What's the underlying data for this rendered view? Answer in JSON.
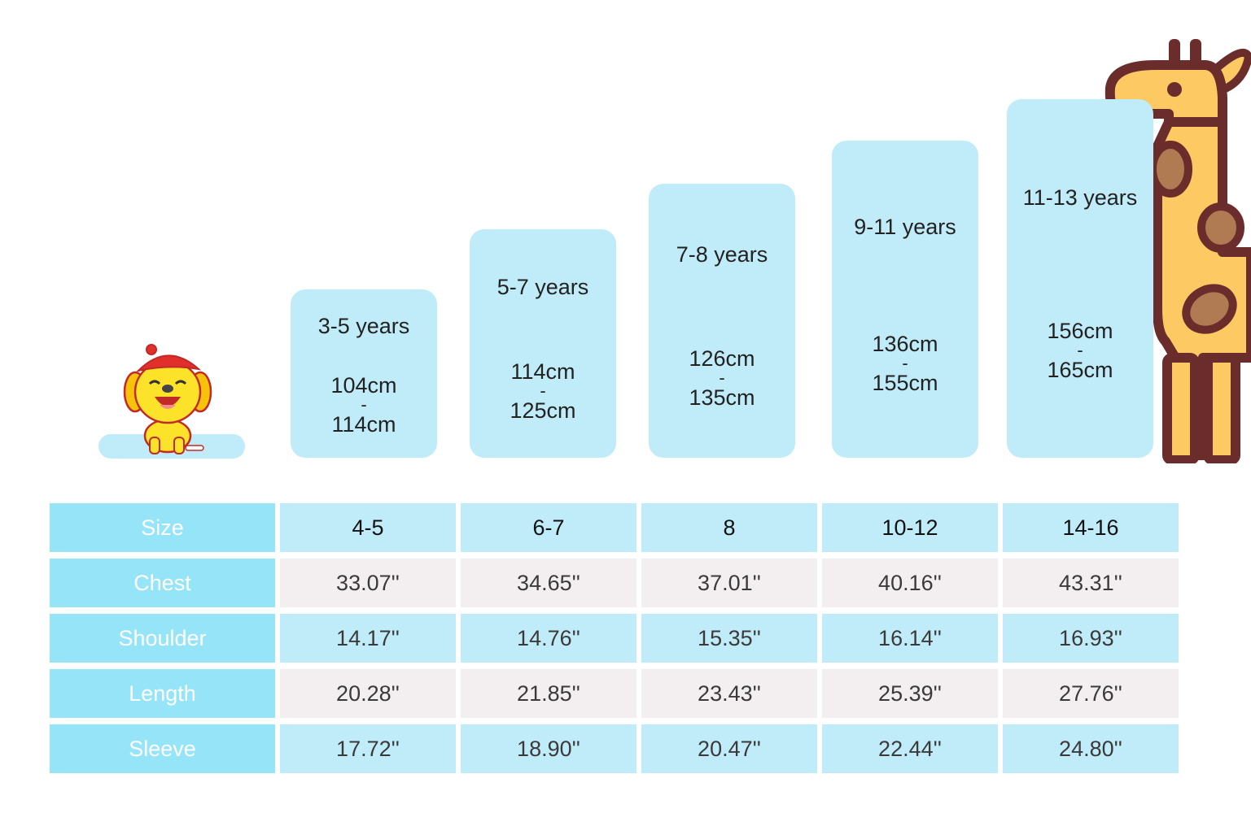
{
  "bars": [
    {
      "age": "3-5 years",
      "height_from": "104cm",
      "separator": "-",
      "height_to": "114cm"
    },
    {
      "age": "5-7 years",
      "height_from": "114cm",
      "separator": "-",
      "height_to": "125cm"
    },
    {
      "age": "7-8 years",
      "height_from": "126cm",
      "separator": "-",
      "height_to": "135cm"
    },
    {
      "age": "9-11 years",
      "height_from": "136cm",
      "separator": "-",
      "height_to": "155cm"
    },
    {
      "age": "11-13 years",
      "height_from": "156cm",
      "separator": "-",
      "height_to": "165cm"
    }
  ],
  "table": {
    "rows": [
      {
        "label": "Size",
        "values": [
          "4-5",
          "6-7",
          "8",
          "10-12",
          "14-16"
        ]
      },
      {
        "label": "Chest",
        "values": [
          "33.07''",
          "34.65''",
          "37.01''",
          "40.16''",
          "43.31''"
        ]
      },
      {
        "label": "Shoulder",
        "values": [
          "14.17''",
          "14.76''",
          "15.35''",
          "16.14''",
          "16.93''"
        ]
      },
      {
        "label": "Length",
        "values": [
          "20.28''",
          "21.85''",
          "23.43''",
          "25.39''",
          "27.76''"
        ]
      },
      {
        "label": "Sleeve",
        "values": [
          "17.72''",
          "18.90''",
          "20.47''",
          "22.44''",
          "24.80''"
        ]
      }
    ]
  },
  "colors": {
    "bar_fill": "#c0ebf8",
    "label_fill": "#96e4f8",
    "alt_row_fill": "#f3eef0",
    "giraffe_body": "#fcc962",
    "giraffe_outline": "#6b2c2c"
  },
  "icons": [
    "dog-mascot-icon",
    "giraffe-icon"
  ]
}
